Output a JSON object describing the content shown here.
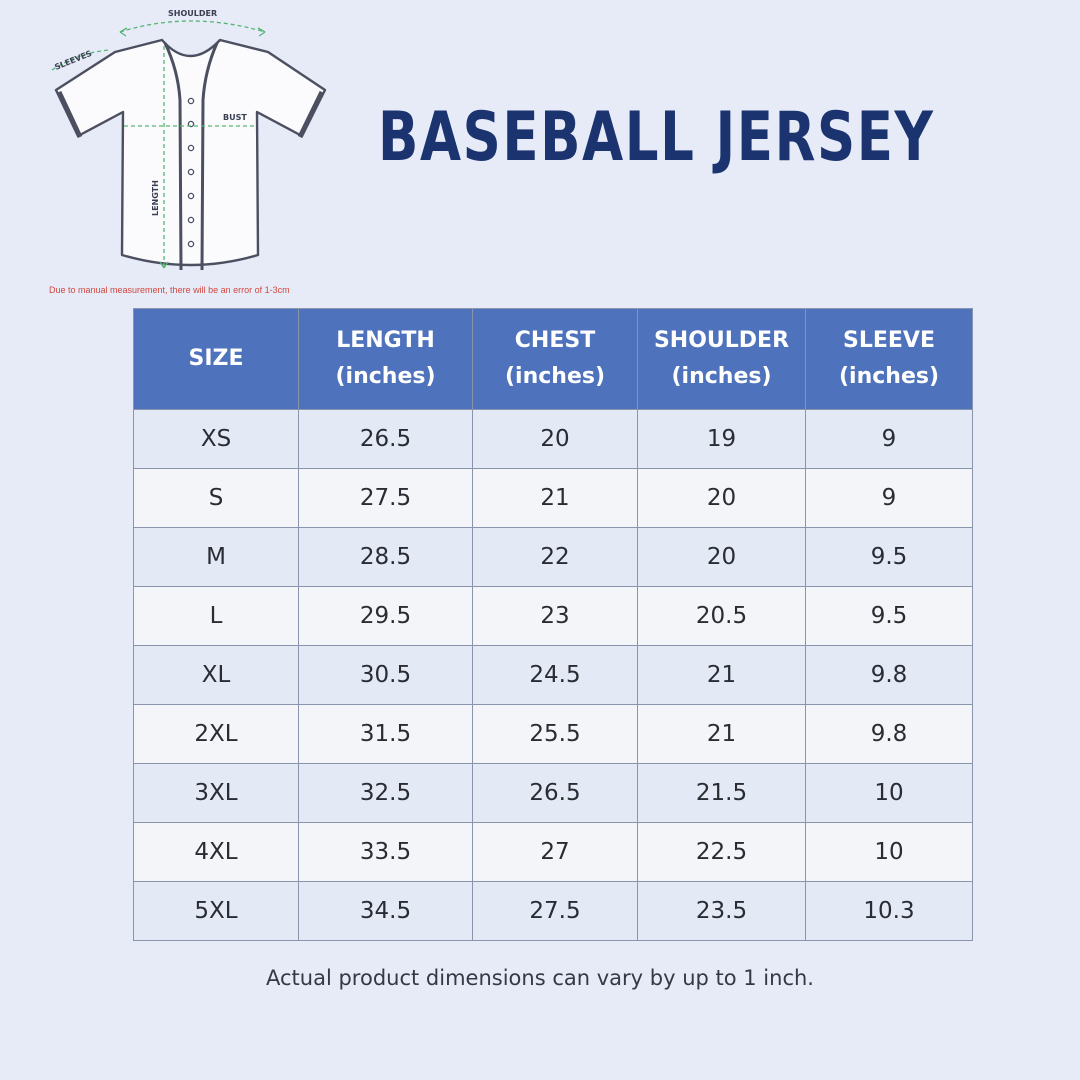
{
  "diagram": {
    "labels": {
      "shoulder": "SHOULDER",
      "sleeves": "SLEEVES",
      "bust": "BUST",
      "length": "LENGTH"
    },
    "note": "Due to manual measurement, there will be an error of 1-3cm"
  },
  "title": "BASEBALL JERSEY",
  "table": {
    "headers": [
      {
        "line1": "SIZE",
        "line2": ""
      },
      {
        "line1": "LENGTH",
        "line2": "(inches)"
      },
      {
        "line1": "CHEST",
        "line2": "(inches)"
      },
      {
        "line1": "SHOULDER",
        "line2": "(inches)"
      },
      {
        "line1": "SLEEVE",
        "line2": "(inches)"
      }
    ],
    "rows": [
      [
        "XS",
        "26.5",
        "20",
        "19",
        "9"
      ],
      [
        "S",
        "27.5",
        "21",
        "20",
        "9"
      ],
      [
        "M",
        "28.5",
        "22",
        "20",
        "9.5"
      ],
      [
        "L",
        "29.5",
        "23",
        "20.5",
        "9.5"
      ],
      [
        "XL",
        "30.5",
        "24.5",
        "21",
        "9.8"
      ],
      [
        "2XL",
        "31.5",
        "25.5",
        "21",
        "9.8"
      ],
      [
        "3XL",
        "32.5",
        "26.5",
        "21.5",
        "10"
      ],
      [
        "4XL",
        "33.5",
        "27",
        "22.5",
        "10"
      ],
      [
        "5XL",
        "34.5",
        "27.5",
        "23.5",
        "10.3"
      ]
    ]
  },
  "footer": "Actual product dimensions can vary by up to 1 inch.",
  "colors": {
    "background": "#e6ebf7",
    "title": "#1b3470",
    "header": "#4f72bd",
    "note": "#d1473f"
  }
}
